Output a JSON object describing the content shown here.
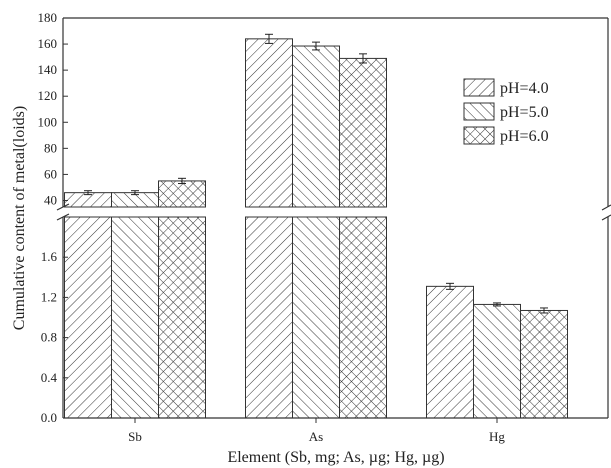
{
  "chart_data": {
    "type": "bar",
    "title": "",
    "xlabel": "Element (Sb, mg; As, µg; Hg, µg)",
    "ylabel": "Cumulative content of metal(loids)",
    "categories": [
      "Sb",
      "As",
      "Hg"
    ],
    "series": [
      {
        "name": "pH=4.0",
        "pattern": "diagonal-right",
        "values": [
          46,
          164,
          1.31
        ],
        "errors": [
          1.5,
          3.5,
          0.03
        ]
      },
      {
        "name": "pH=5.0",
        "pattern": "diagonal-left",
        "values": [
          46,
          158.5,
          1.13
        ],
        "errors": [
          1.5,
          3.0,
          0.015
        ]
      },
      {
        "name": "pH=6.0",
        "pattern": "crosshatch",
        "values": [
          55,
          149,
          1.07
        ],
        "errors": [
          2.0,
          3.5,
          0.025
        ]
      }
    ],
    "y_axis_broken": true,
    "y_lower_segment": {
      "range": [
        0,
        2.0
      ],
      "ticks": [
        "0.0",
        "0.4",
        "0.8",
        "1.2",
        "1.6"
      ]
    },
    "y_upper_segment": {
      "range": [
        35,
        180
      ],
      "ticks": [
        "40",
        "60",
        "80",
        "100",
        "120",
        "140",
        "160",
        "180"
      ]
    },
    "legend_position": "upper-right",
    "grid": false,
    "colors": {
      "bar_fill": "#ffffff",
      "hatch": "#333333",
      "axis": "#333333"
    }
  }
}
